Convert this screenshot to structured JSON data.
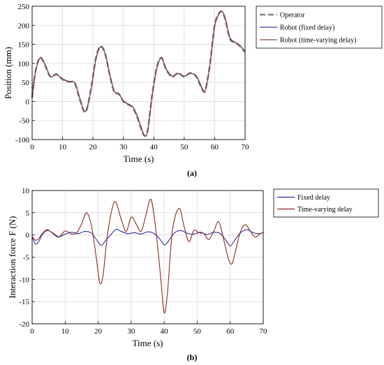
{
  "chart_data": [
    {
      "type": "line",
      "panel_label": "(a)",
      "xlabel": "Time (s)",
      "ylabel": "Position (mm)",
      "xlim": [
        0,
        70
      ],
      "ylim": [
        -100,
        250
      ],
      "xticks": [
        0,
        10,
        20,
        30,
        40,
        50,
        60,
        70
      ],
      "yticks": [
        -100,
        -50,
        0,
        50,
        100,
        150,
        200,
        250
      ],
      "grid": true,
      "legend_position": "outside-right-top",
      "series": [
        {
          "name": "Operator",
          "color": "#808080",
          "style": "dashed",
          "x": [
            0,
            1,
            2.5,
            4,
            6,
            8,
            10,
            12,
            14,
            15.5,
            17,
            18,
            19.5,
            21,
            22.5,
            24,
            25.5,
            27,
            28.5,
            30,
            31.5,
            33,
            34.5,
            36,
            37,
            38,
            39.5,
            41,
            42.5,
            44,
            46,
            48,
            50,
            52,
            54,
            56,
            57,
            58.5,
            60,
            61.5,
            62.5,
            63.5,
            65,
            66.5,
            68,
            70
          ],
          "y": [
            10,
            75,
            115,
            100,
            65,
            72,
            58,
            52,
            48,
            10,
            -25,
            -20,
            40,
            115,
            145,
            125,
            70,
            25,
            20,
            0,
            -8,
            -15,
            -40,
            -75,
            -90,
            -75,
            20,
            90,
            115,
            85,
            65,
            75,
            65,
            75,
            65,
            30,
            32,
            100,
            200,
            232,
            235,
            215,
            165,
            155,
            148,
            130
          ]
        },
        {
          "name": "Robot (fixed delay)",
          "color": "#3a3a9c",
          "style": "solid",
          "x": [
            0,
            1,
            2.5,
            4,
            6,
            8,
            10,
            12,
            14,
            15.5,
            17,
            18,
            19.5,
            21,
            22.5,
            24,
            25.5,
            27,
            28.5,
            30,
            31.5,
            33,
            34.5,
            36,
            37,
            38,
            39.5,
            41,
            42.5,
            44,
            46,
            48,
            50,
            52,
            54,
            56,
            57,
            58.5,
            60,
            61.5,
            62.5,
            63.5,
            65,
            66.5,
            68,
            70
          ],
          "y": [
            10,
            73,
            114,
            101,
            66,
            71,
            59,
            52,
            49,
            12,
            -23,
            -19,
            38,
            113,
            144,
            126,
            72,
            27,
            20,
            1,
            -7,
            -14,
            -38,
            -73,
            -90,
            -77,
            18,
            88,
            115,
            86,
            66,
            74,
            66,
            74,
            66,
            32,
            31,
            98,
            198,
            231,
            236,
            217,
            167,
            156,
            149,
            131
          ]
        },
        {
          "name": "Robot (time-varying delay)",
          "color": "#8b4a3c",
          "style": "solid",
          "x": [
            0,
            1,
            2.5,
            4,
            6,
            8,
            10,
            12,
            14,
            15.5,
            17,
            18,
            19.5,
            21,
            22.5,
            24,
            25.5,
            27,
            28.5,
            30,
            31.5,
            33,
            34.5,
            36,
            37,
            38,
            39.5,
            41,
            42.5,
            44,
            46,
            48,
            50,
            52,
            54,
            56,
            57,
            58.5,
            60,
            61.5,
            62.5,
            63.5,
            65,
            66.5,
            68,
            70
          ],
          "y": [
            10,
            72,
            113,
            102,
            67,
            70,
            60,
            53,
            50,
            14,
            -22,
            -20,
            36,
            111,
            143,
            127,
            74,
            28,
            21,
            2,
            -6,
            -13,
            -36,
            -71,
            -89,
            -78,
            16,
            86,
            114,
            87,
            67,
            73,
            67,
            73,
            67,
            34,
            30,
            96,
            196,
            230,
            236,
            219,
            169,
            157,
            150,
            132
          ]
        }
      ]
    },
    {
      "type": "line",
      "panel_label": "(b)",
      "xlabel": "Time (s)",
      "ylabel": "Interaction force F (N)",
      "xlim": [
        0,
        70
      ],
      "ylim": [
        -20,
        10
      ],
      "xticks": [
        0,
        10,
        20,
        30,
        40,
        50,
        60,
        70
      ],
      "yticks": [
        -20,
        -15,
        -10,
        -5,
        0,
        5,
        10
      ],
      "grid": true,
      "legend_position": "outside-right-top",
      "series": [
        {
          "name": "Fixed delay",
          "color": "#2c2ca0",
          "style": "solid",
          "x": [
            0,
            1,
            2,
            3,
            4.5,
            6,
            8,
            10,
            12,
            14,
            16,
            18,
            20,
            21,
            22,
            24,
            25.5,
            27,
            29,
            31,
            33,
            35,
            37,
            39,
            40,
            41,
            43,
            45,
            47,
            49,
            51,
            53,
            55,
            57,
            59,
            60,
            61,
            63,
            65,
            67,
            69,
            70
          ],
          "y": [
            -0.5,
            -2,
            -1.5,
            0,
            1.0,
            0.6,
            -0.4,
            0.2,
            0.6,
            0.3,
            0.8,
            0.4,
            -1.6,
            -2.4,
            -1.5,
            0.2,
            1.3,
            0.8,
            0.3,
            0.5,
            0.2,
            0.7,
            0.3,
            -1.2,
            -2.2,
            -1.7,
            0.4,
            1.0,
            0.4,
            0.2,
            0.6,
            0.1,
            0.6,
            0.3,
            -1.5,
            -2.5,
            -1.6,
            0.4,
            1.2,
            0.5,
            0.3,
            0.6
          ]
        },
        {
          "name": "Time-varying delay",
          "color": "#8b2a1a",
          "style": "solid",
          "x": [
            0,
            1,
            2,
            3,
            4.5,
            6,
            8,
            10,
            12,
            13.5,
            15,
            16.5,
            18,
            19.5,
            20.5,
            21.5,
            23,
            25,
            27,
            28.5,
            30,
            31.5,
            33,
            34.5,
            36,
            37.5,
            39,
            40,
            41,
            42.5,
            44.5,
            46,
            47.5,
            49,
            50.5,
            52,
            53.5,
            55,
            56.5,
            58,
            59.5,
            60.5,
            61.5,
            63,
            64.5,
            66,
            67.5,
            69,
            70
          ],
          "y": [
            -0.3,
            -1.2,
            -0.8,
            0.2,
            1.2,
            0.5,
            -0.5,
            0.9,
            0.2,
            0.5,
            2.5,
            5.0,
            2.0,
            -5.5,
            -10.8,
            -9.0,
            1.0,
            7.5,
            3.5,
            0.8,
            4.0,
            2.5,
            0.8,
            4.5,
            8.0,
            1.0,
            -10.0,
            -17.5,
            -13.0,
            1.0,
            6.0,
            2.0,
            -1.5,
            1.0,
            0.5,
            0.3,
            -1.0,
            0.8,
            3.0,
            -1.0,
            -5.5,
            -6.5,
            -4.0,
            0.5,
            2.3,
            1.0,
            -0.5,
            0.3,
            0.5
          ]
        }
      ]
    }
  ]
}
